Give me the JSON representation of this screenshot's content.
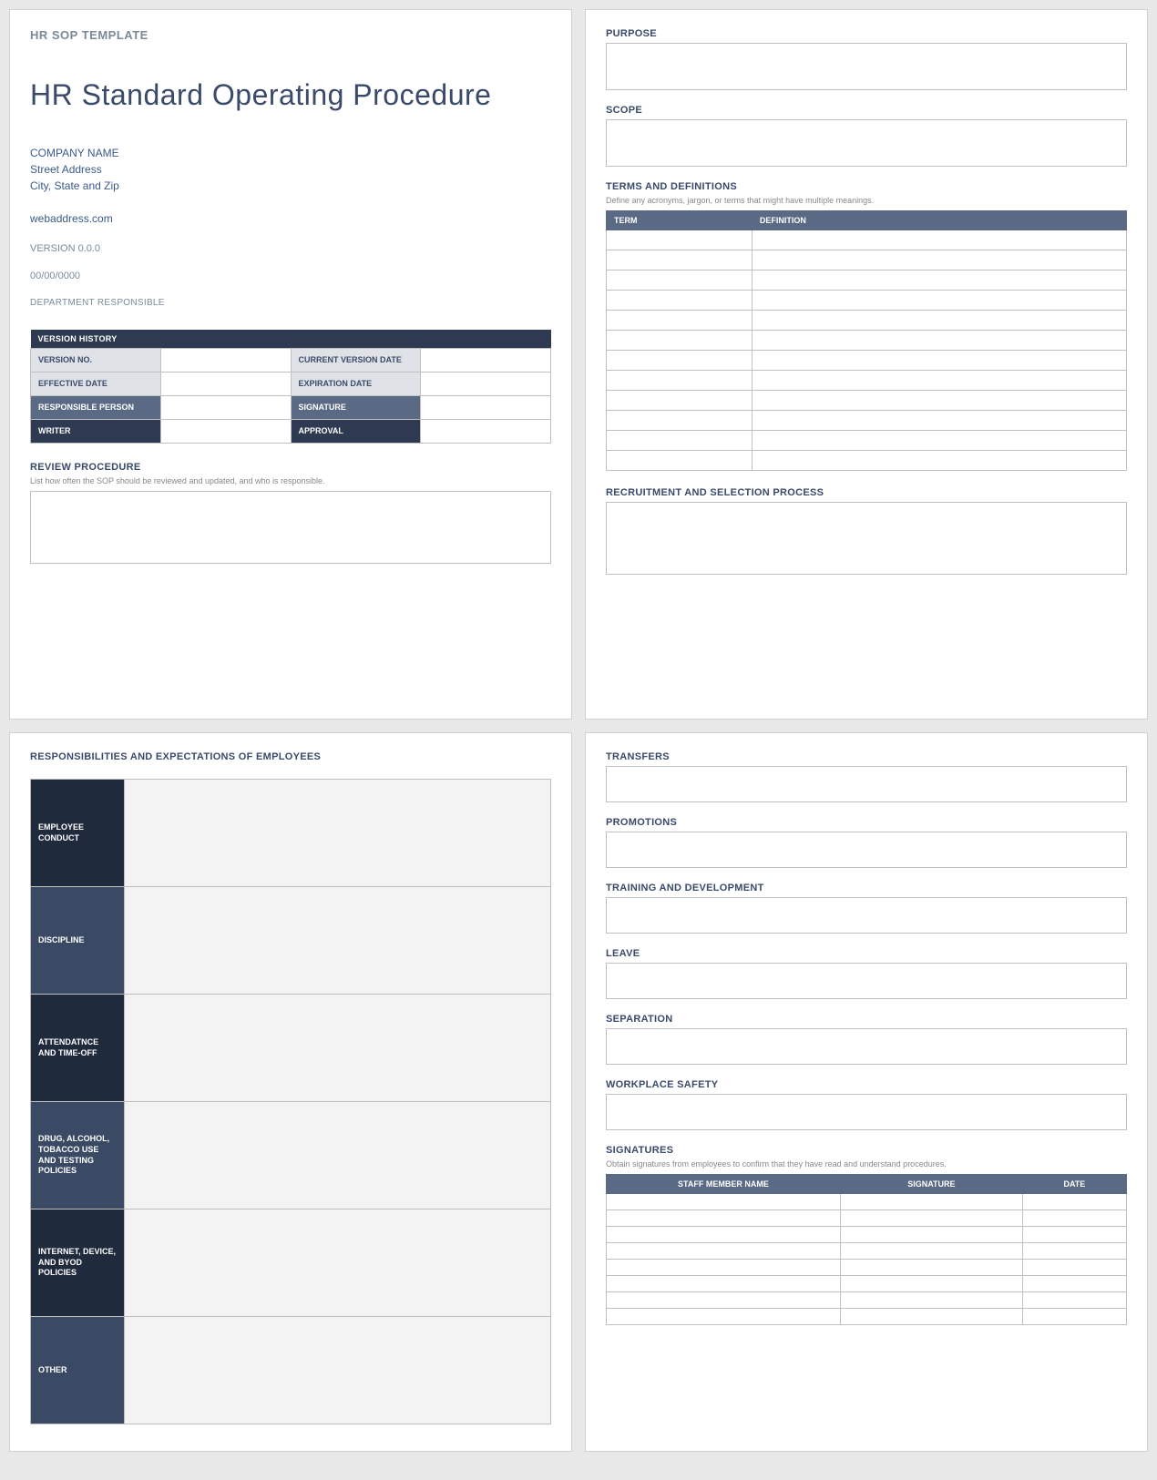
{
  "colors": {
    "page_bg": "#ffffff",
    "body_bg": "#e8e8e8",
    "header_dark": "#2d3a52",
    "header_mid": "#5a6a84",
    "header_darkest": "#1f2a3c",
    "cell_light": "#dfe3e8",
    "cell_grey": "#f3f3f3",
    "border": "#bfbfbf",
    "text_accent": "#3a5a8a",
    "text_muted": "#7a8a9a",
    "title_color": "#3a4a6a"
  },
  "template_label": "HR SOP TEMPLATE",
  "doc_title": "HR Standard Operating Procedure",
  "company": {
    "name": "COMPANY NAME",
    "street": "Street Address",
    "city": "City, State and Zip",
    "web": "webaddress.com"
  },
  "version_line": "VERSION 0.0.0",
  "date_line": "00/00/0000",
  "dept_line": "DEPARTMENT RESPONSIBLE",
  "version_history": {
    "title": "VERSION HISTORY",
    "rows": [
      {
        "left_label": "VERSION NO.",
        "left_style": "light",
        "right_label": "CURRENT VERSION DATE",
        "right_style": "light"
      },
      {
        "left_label": "EFFECTIVE DATE",
        "left_style": "light",
        "right_label": "EXPIRATION DATE",
        "right_style": "light"
      },
      {
        "left_label": "RESPONSIBLE PERSON",
        "left_style": "mid",
        "right_label": "SIGNATURE",
        "right_style": "mid"
      },
      {
        "left_label": "WRITER",
        "left_style": "dark",
        "right_label": "APPROVAL",
        "right_style": "dark"
      }
    ]
  },
  "review": {
    "title": "REVIEW PROCEDURE",
    "sub": "List how often the SOP should be reviewed and updated, and who is responsible."
  },
  "page2": {
    "purpose": "PURPOSE",
    "scope": "SCOPE",
    "terms_title": "TERMS AND DEFINITIONS",
    "terms_sub": "Define any acronyms, jargon, or terms that might have multiple meanings.",
    "terms_columns": [
      "TERM",
      "DEFINITION"
    ],
    "terms_row_count": 12,
    "recruitment": "RECRUITMENT AND SELECTION PROCESS"
  },
  "page3": {
    "title": "RESPONSIBILITIES AND EXPECTATIONS OF EMPLOYEES",
    "rows": [
      {
        "label": "EMPLOYEE CONDUCT",
        "bg": "darkest"
      },
      {
        "label": "DISCIPLINE",
        "bg": "dark2"
      },
      {
        "label": "ATTENDATNCE AND TIME-OFF",
        "bg": "darkest"
      },
      {
        "label": "DRUG, ALCOHOL, TOBACCO USE AND TESTING POLICIES",
        "bg": "dark2"
      },
      {
        "label": "INTERNET, DEVICE, AND BYOD POLICIES",
        "bg": "darkest"
      },
      {
        "label": "OTHER",
        "bg": "dark2"
      }
    ]
  },
  "page4": {
    "sections": [
      "TRANSFERS",
      "PROMOTIONS",
      "TRAINING AND DEVELOPMENT",
      "LEAVE",
      "SEPARATION",
      "WORKPLACE SAFETY"
    ],
    "signatures": {
      "title": "SIGNATURES",
      "sub": "Obtain signatures from employees to confirm that they have read and understand procedures.",
      "columns": [
        "STAFF MEMBER NAME",
        "SIGNATURE",
        "DATE"
      ],
      "col_widths": [
        "45%",
        "35%",
        "20%"
      ],
      "row_count": 8
    }
  }
}
